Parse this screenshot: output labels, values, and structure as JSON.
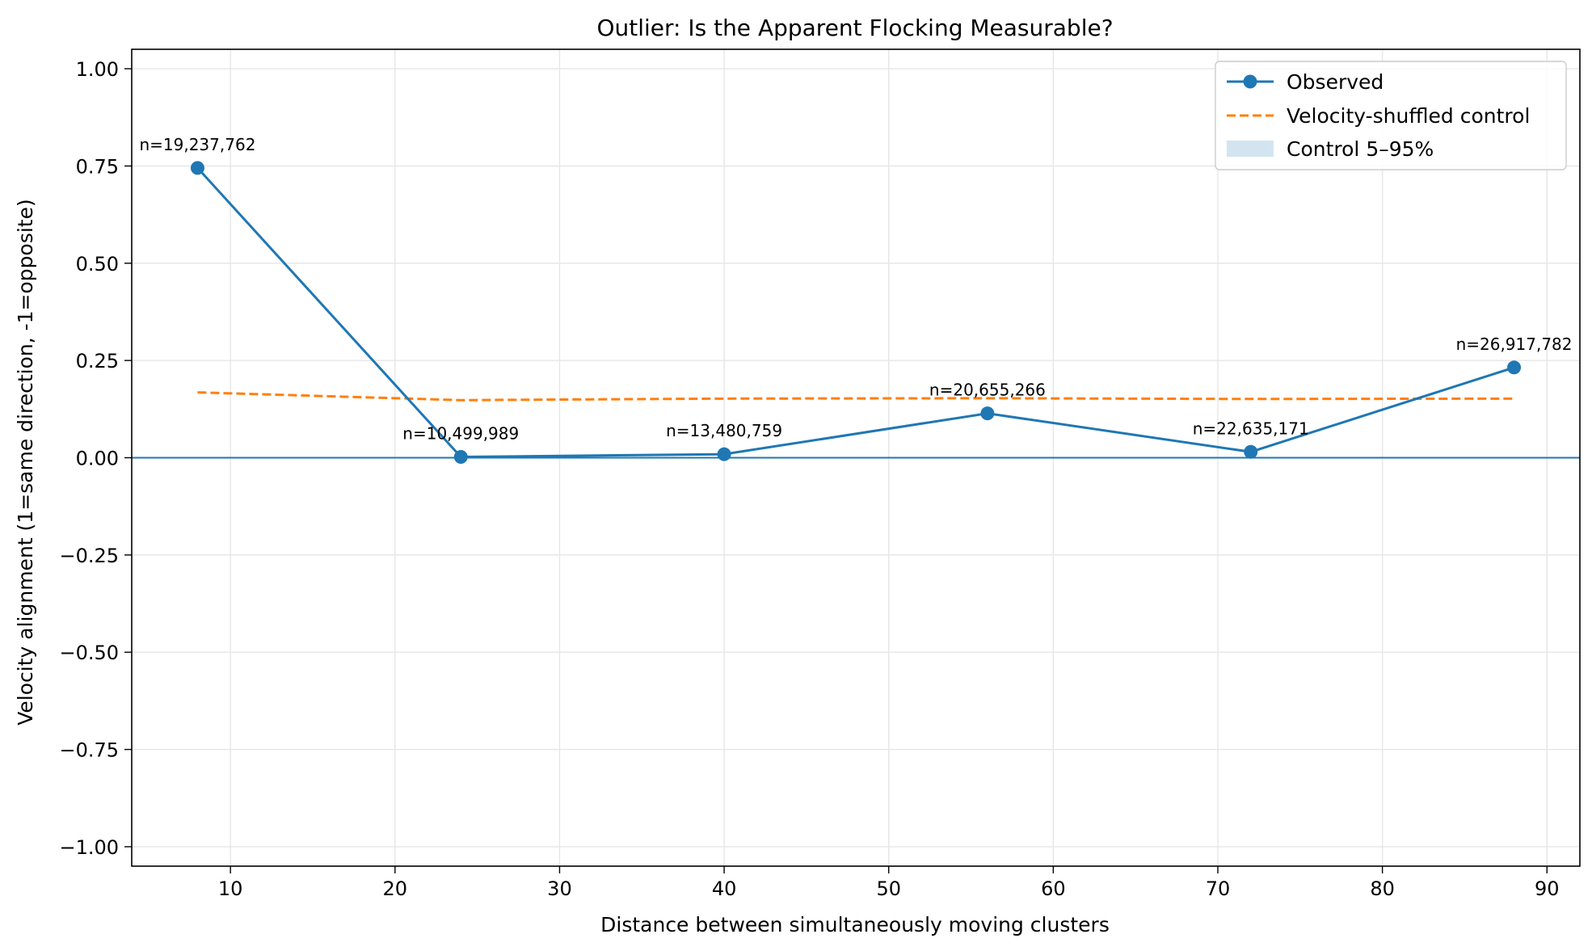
{
  "chart_data": {
    "type": "line",
    "title": "Outlier: Is the Apparent Flocking Measurable?",
    "xlabel": "Distance between simultaneously moving clusters",
    "ylabel": "Velocity alignment (1=same direction, -1=opposite)",
    "xlim": [
      4,
      92
    ],
    "ylim": [
      -1.05,
      1.05
    ],
    "xticks": [
      10,
      20,
      30,
      40,
      50,
      60,
      70,
      80,
      90
    ],
    "xtick_labels": [
      "10",
      "20",
      "30",
      "40",
      "50",
      "60",
      "70",
      "80",
      "90"
    ],
    "yticks": [
      1.0,
      0.75,
      0.5,
      0.25,
      0.0,
      -0.25,
      -0.5,
      -0.75,
      -1.0
    ],
    "ytick_labels": [
      "1.00",
      "0.75",
      "0.50",
      "0.25",
      "0.00",
      "−0.25",
      "−0.50",
      "−0.75",
      "−1.00"
    ],
    "grid": true,
    "legend_position": "top-right",
    "reference_line_y": 0,
    "x": [
      8,
      24,
      40,
      56,
      72,
      88
    ],
    "series": [
      {
        "name": "Observed",
        "style": "solid-markers",
        "color": "#1f77b4",
        "values": [
          0.745,
          0.002,
          0.009,
          0.114,
          0.015,
          0.232
        ],
        "point_labels": [
          "n=19,237,762",
          "n=10,499,989",
          "n=13,480,759",
          "n=20,655,266",
          "n=22,635,171",
          "n=26,917,782"
        ]
      },
      {
        "name": "Velocity-shuffled control",
        "style": "dashed",
        "color": "#ff7f0e",
        "values": [
          0.168,
          0.148,
          0.152,
          0.153,
          0.151,
          0.152
        ]
      }
    ],
    "band": {
      "name": "Control 5–95%",
      "color": "#aecde6",
      "lower": [
        0.168,
        0.148,
        0.152,
        0.153,
        0.151,
        0.152
      ],
      "upper": [
        0.168,
        0.148,
        0.152,
        0.153,
        0.151,
        0.152
      ]
    }
  }
}
